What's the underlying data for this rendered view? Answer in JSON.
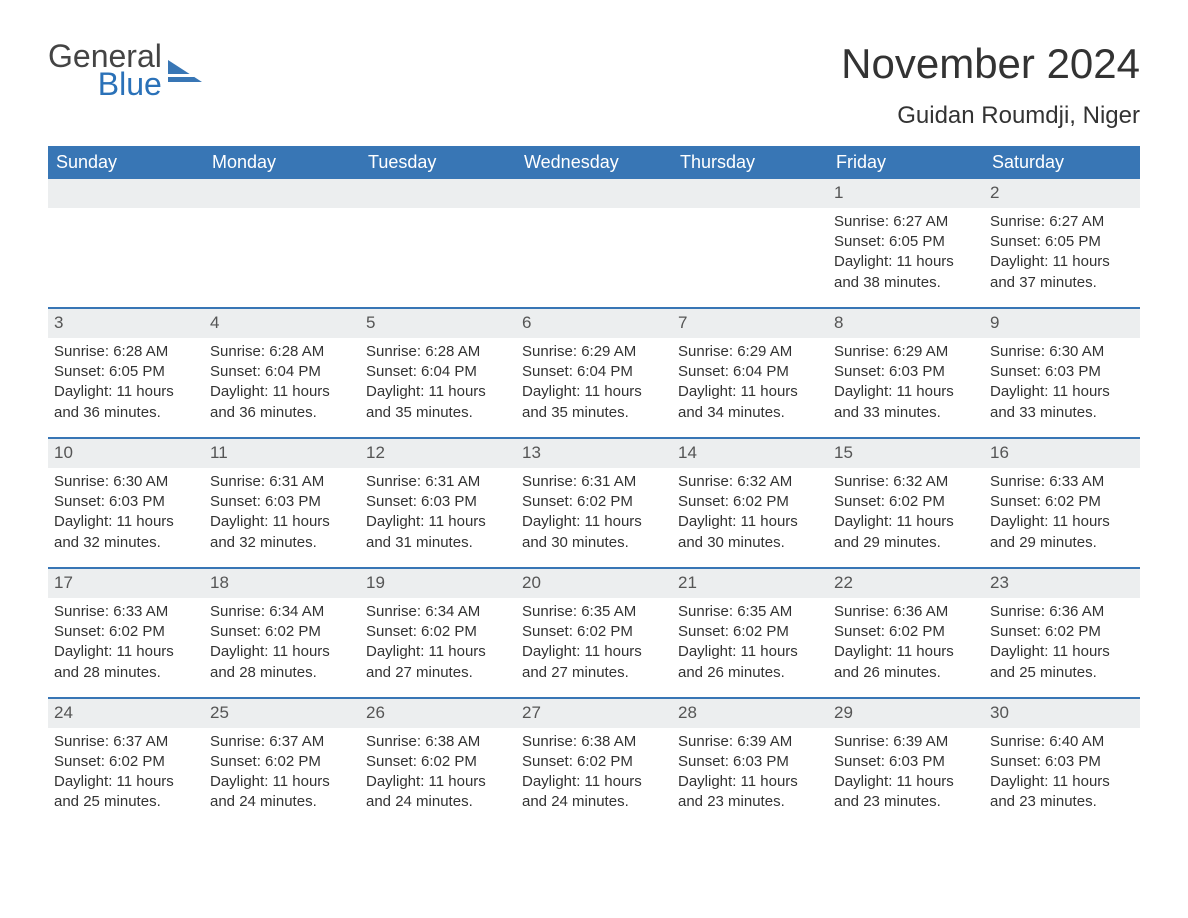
{
  "brand": {
    "word1": "General",
    "word2": "Blue",
    "color_general": "#444444",
    "color_blue": "#2a71b8",
    "shape_color": "#3876b5"
  },
  "title": "November 2024",
  "location": "Guidan Roumdji, Niger",
  "colors": {
    "header_bg": "#3876b5",
    "header_text": "#ffffff",
    "row_divider": "#3876b5",
    "daynum_bg": "#eceeef",
    "text": "#333333",
    "background": "#ffffff"
  },
  "day_names": [
    "Sunday",
    "Monday",
    "Tuesday",
    "Wednesday",
    "Thursday",
    "Friday",
    "Saturday"
  ],
  "weeks": [
    [
      {
        "empty": true
      },
      {
        "empty": true
      },
      {
        "empty": true
      },
      {
        "empty": true
      },
      {
        "empty": true
      },
      {
        "day": "1",
        "sunrise": "Sunrise: 6:27 AM",
        "sunset": "Sunset: 6:05 PM",
        "daylight": "Daylight: 11 hours and 38 minutes."
      },
      {
        "day": "2",
        "sunrise": "Sunrise: 6:27 AM",
        "sunset": "Sunset: 6:05 PM",
        "daylight": "Daylight: 11 hours and 37 minutes."
      }
    ],
    [
      {
        "day": "3",
        "sunrise": "Sunrise: 6:28 AM",
        "sunset": "Sunset: 6:05 PM",
        "daylight": "Daylight: 11 hours and 36 minutes."
      },
      {
        "day": "4",
        "sunrise": "Sunrise: 6:28 AM",
        "sunset": "Sunset: 6:04 PM",
        "daylight": "Daylight: 11 hours and 36 minutes."
      },
      {
        "day": "5",
        "sunrise": "Sunrise: 6:28 AM",
        "sunset": "Sunset: 6:04 PM",
        "daylight": "Daylight: 11 hours and 35 minutes."
      },
      {
        "day": "6",
        "sunrise": "Sunrise: 6:29 AM",
        "sunset": "Sunset: 6:04 PM",
        "daylight": "Daylight: 11 hours and 35 minutes."
      },
      {
        "day": "7",
        "sunrise": "Sunrise: 6:29 AM",
        "sunset": "Sunset: 6:04 PM",
        "daylight": "Daylight: 11 hours and 34 minutes."
      },
      {
        "day": "8",
        "sunrise": "Sunrise: 6:29 AM",
        "sunset": "Sunset: 6:03 PM",
        "daylight": "Daylight: 11 hours and 33 minutes."
      },
      {
        "day": "9",
        "sunrise": "Sunrise: 6:30 AM",
        "sunset": "Sunset: 6:03 PM",
        "daylight": "Daylight: 11 hours and 33 minutes."
      }
    ],
    [
      {
        "day": "10",
        "sunrise": "Sunrise: 6:30 AM",
        "sunset": "Sunset: 6:03 PM",
        "daylight": "Daylight: 11 hours and 32 minutes."
      },
      {
        "day": "11",
        "sunrise": "Sunrise: 6:31 AM",
        "sunset": "Sunset: 6:03 PM",
        "daylight": "Daylight: 11 hours and 32 minutes."
      },
      {
        "day": "12",
        "sunrise": "Sunrise: 6:31 AM",
        "sunset": "Sunset: 6:03 PM",
        "daylight": "Daylight: 11 hours and 31 minutes."
      },
      {
        "day": "13",
        "sunrise": "Sunrise: 6:31 AM",
        "sunset": "Sunset: 6:02 PM",
        "daylight": "Daylight: 11 hours and 30 minutes."
      },
      {
        "day": "14",
        "sunrise": "Sunrise: 6:32 AM",
        "sunset": "Sunset: 6:02 PM",
        "daylight": "Daylight: 11 hours and 30 minutes."
      },
      {
        "day": "15",
        "sunrise": "Sunrise: 6:32 AM",
        "sunset": "Sunset: 6:02 PM",
        "daylight": "Daylight: 11 hours and 29 minutes."
      },
      {
        "day": "16",
        "sunrise": "Sunrise: 6:33 AM",
        "sunset": "Sunset: 6:02 PM",
        "daylight": "Daylight: 11 hours and 29 minutes."
      }
    ],
    [
      {
        "day": "17",
        "sunrise": "Sunrise: 6:33 AM",
        "sunset": "Sunset: 6:02 PM",
        "daylight": "Daylight: 11 hours and 28 minutes."
      },
      {
        "day": "18",
        "sunrise": "Sunrise: 6:34 AM",
        "sunset": "Sunset: 6:02 PM",
        "daylight": "Daylight: 11 hours and 28 minutes."
      },
      {
        "day": "19",
        "sunrise": "Sunrise: 6:34 AM",
        "sunset": "Sunset: 6:02 PM",
        "daylight": "Daylight: 11 hours and 27 minutes."
      },
      {
        "day": "20",
        "sunrise": "Sunrise: 6:35 AM",
        "sunset": "Sunset: 6:02 PM",
        "daylight": "Daylight: 11 hours and 27 minutes."
      },
      {
        "day": "21",
        "sunrise": "Sunrise: 6:35 AM",
        "sunset": "Sunset: 6:02 PM",
        "daylight": "Daylight: 11 hours and 26 minutes."
      },
      {
        "day": "22",
        "sunrise": "Sunrise: 6:36 AM",
        "sunset": "Sunset: 6:02 PM",
        "daylight": "Daylight: 11 hours and 26 minutes."
      },
      {
        "day": "23",
        "sunrise": "Sunrise: 6:36 AM",
        "sunset": "Sunset: 6:02 PM",
        "daylight": "Daylight: 11 hours and 25 minutes."
      }
    ],
    [
      {
        "day": "24",
        "sunrise": "Sunrise: 6:37 AM",
        "sunset": "Sunset: 6:02 PM",
        "daylight": "Daylight: 11 hours and 25 minutes."
      },
      {
        "day": "25",
        "sunrise": "Sunrise: 6:37 AM",
        "sunset": "Sunset: 6:02 PM",
        "daylight": "Daylight: 11 hours and 24 minutes."
      },
      {
        "day": "26",
        "sunrise": "Sunrise: 6:38 AM",
        "sunset": "Sunset: 6:02 PM",
        "daylight": "Daylight: 11 hours and 24 minutes."
      },
      {
        "day": "27",
        "sunrise": "Sunrise: 6:38 AM",
        "sunset": "Sunset: 6:02 PM",
        "daylight": "Daylight: 11 hours and 24 minutes."
      },
      {
        "day": "28",
        "sunrise": "Sunrise: 6:39 AM",
        "sunset": "Sunset: 6:03 PM",
        "daylight": "Daylight: 11 hours and 23 minutes."
      },
      {
        "day": "29",
        "sunrise": "Sunrise: 6:39 AM",
        "sunset": "Sunset: 6:03 PM",
        "daylight": "Daylight: 11 hours and 23 minutes."
      },
      {
        "day": "30",
        "sunrise": "Sunrise: 6:40 AM",
        "sunset": "Sunset: 6:03 PM",
        "daylight": "Daylight: 11 hours and 23 minutes."
      }
    ]
  ]
}
